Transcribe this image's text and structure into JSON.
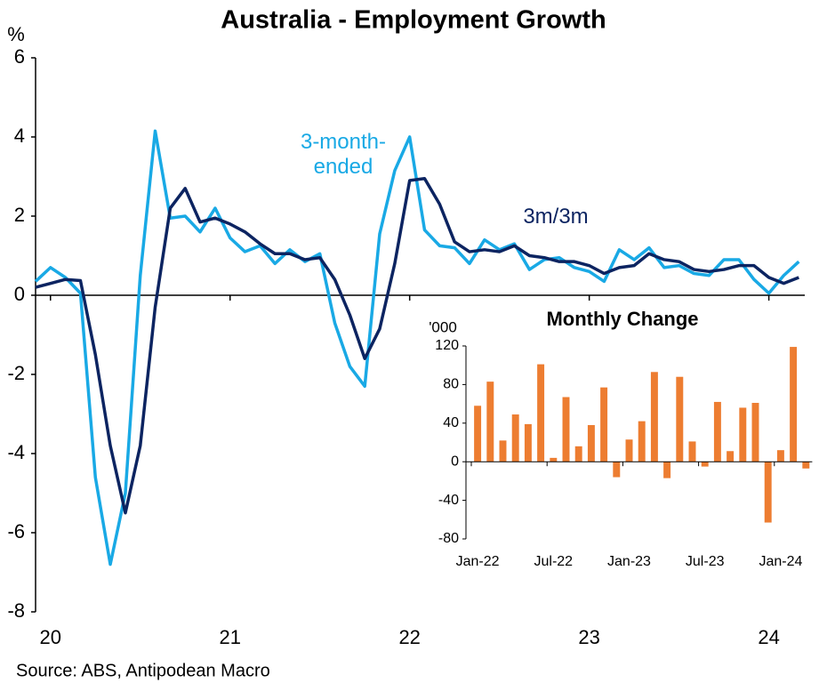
{
  "chart_data": [
    {
      "type": "line",
      "title": "Australia - Employment Growth",
      "ylabel": "%",
      "x": [
        2019.917,
        2020,
        2020.083,
        2020.167,
        2020.25,
        2020.333,
        2020.417,
        2020.5,
        2020.583,
        2020.667,
        2020.75,
        2020.833,
        2020.917,
        2021,
        2021.083,
        2021.167,
        2021.25,
        2021.333,
        2021.417,
        2021.5,
        2021.583,
        2021.667,
        2021.75,
        2021.833,
        2021.917,
        2022,
        2022.083,
        2022.167,
        2022.25,
        2022.333,
        2022.417,
        2022.5,
        2022.583,
        2022.667,
        2022.75,
        2022.833,
        2022.917,
        2023,
        2023.083,
        2023.167,
        2023.25,
        2023.333,
        2023.417,
        2023.5,
        2023.583,
        2023.667,
        2023.75,
        2023.833,
        2023.917,
        2024,
        2024.083,
        2024.167
      ],
      "xlim": [
        2019.917,
        2024.2
      ],
      "xticks": [
        {
          "value": 2020,
          "label": "20"
        },
        {
          "value": 2021,
          "label": "21"
        },
        {
          "value": 2022,
          "label": "22"
        },
        {
          "value": 2023,
          "label": "23"
        },
        {
          "value": 2024,
          "label": "24"
        }
      ],
      "ylim": [
        -8,
        6
      ],
      "yticks": [
        -8,
        -6,
        -4,
        -2,
        0,
        2,
        4,
        6
      ],
      "series": [
        {
          "name": "3-month-ended",
          "color": "#19a9e5",
          "values": [
            0.35,
            0.7,
            0.45,
            0.05,
            -4.6,
            -6.8,
            -5.0,
            0.5,
            4.15,
            1.95,
            2.0,
            1.6,
            2.2,
            1.45,
            1.1,
            1.25,
            0.8,
            1.15,
            0.85,
            1.05,
            -0.7,
            -1.8,
            -2.3,
            1.55,
            3.15,
            4.0,
            1.65,
            1.25,
            1.2,
            0.8,
            1.4,
            1.15,
            1.3,
            0.65,
            0.9,
            0.95,
            0.7,
            0.6,
            0.35,
            1.15,
            0.9,
            1.2,
            0.7,
            0.75,
            0.55,
            0.5,
            0.9,
            0.9,
            0.4,
            0.05,
            0.5,
            0.85
          ]
        },
        {
          "name": "3m/3m",
          "color": "#0c2461",
          "values": [
            0.2,
            0.3,
            0.4,
            0.37,
            -1.5,
            -3.8,
            -5.5,
            -3.8,
            -0.3,
            2.2,
            2.7,
            1.85,
            1.95,
            1.8,
            1.6,
            1.3,
            1.05,
            1.05,
            0.9,
            0.95,
            0.4,
            -0.5,
            -1.6,
            -0.85,
            0.8,
            2.9,
            2.95,
            2.3,
            1.35,
            1.1,
            1.15,
            1.1,
            1.25,
            1.0,
            0.95,
            0.85,
            0.85,
            0.75,
            0.55,
            0.7,
            0.75,
            1.05,
            0.9,
            0.85,
            0.65,
            0.6,
            0.65,
            0.75,
            0.75,
            0.45,
            0.3,
            0.45
          ]
        }
      ]
    },
    {
      "type": "bar",
      "title": "Monthly Change",
      "ylabel": "'000",
      "categories": [
        "Jan-22",
        null,
        null,
        null,
        null,
        null,
        "Jul-22",
        null,
        null,
        null,
        null,
        null,
        "Jan-23",
        null,
        null,
        null,
        null,
        null,
        "Jul-23",
        null,
        null,
        null,
        null,
        null,
        "Jan-24",
        null,
        null
      ],
      "values": [
        58,
        83,
        22,
        49,
        39,
        101,
        4,
        67,
        16,
        38,
        77,
        -16,
        23,
        42,
        93,
        -17,
        88,
        21,
        -5,
        62,
        11,
        56,
        61,
        -63,
        12,
        119,
        -7
      ],
      "color": "#ed7d31",
      "ylim": [
        -80,
        120
      ],
      "yticks": [
        -80,
        -40,
        0,
        40,
        80,
        120
      ]
    }
  ],
  "source": "Source: ABS, Antipodean Macro"
}
